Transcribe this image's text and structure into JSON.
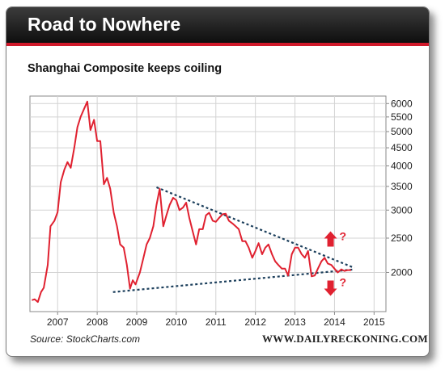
{
  "header": {
    "title": "Road to Nowhere"
  },
  "chart_data": {
    "type": "line",
    "title": "Shanghai Composite keeps coiling",
    "xlabel": "",
    "ylabel": "",
    "y_scale": "log",
    "ylim": [
      1550,
      6300
    ],
    "xlim": [
      2006.3,
      2015.3
    ],
    "y_axis_position": "right",
    "x_tick_labels": [
      "2007",
      "2008",
      "2009",
      "2010",
      "2011",
      "2012",
      "2013",
      "2014",
      "2015"
    ],
    "x_ticks": [
      2007,
      2008,
      2009,
      2010,
      2011,
      2012,
      2013,
      2014,
      2015
    ],
    "y_tick_labels": [
      "6000",
      "5500",
      "5000",
      "4500",
      "4000",
      "3500",
      "3000",
      "2500",
      "2000"
    ],
    "y_ticks": [
      6000,
      5500,
      5000,
      4500,
      4000,
      3500,
      3000,
      2500,
      2000
    ],
    "grid": true,
    "series": [
      {
        "color": "#e02130",
        "points": [
          [
            2006.35,
            1670
          ],
          [
            2006.42,
            1680
          ],
          [
            2006.5,
            1650
          ],
          [
            2006.58,
            1760
          ],
          [
            2006.65,
            1810
          ],
          [
            2006.75,
            2100
          ],
          [
            2006.82,
            2700
          ],
          [
            2006.92,
            2800
          ],
          [
            2007.0,
            2960
          ],
          [
            2007.08,
            3600
          ],
          [
            2007.17,
            3900
          ],
          [
            2007.25,
            4100
          ],
          [
            2007.33,
            3950
          ],
          [
            2007.42,
            4500
          ],
          [
            2007.5,
            5150
          ],
          [
            2007.58,
            5500
          ],
          [
            2007.67,
            5800
          ],
          [
            2007.75,
            6080
          ],
          [
            2007.83,
            5050
          ],
          [
            2007.92,
            5400
          ],
          [
            2008.0,
            4700
          ],
          [
            2008.08,
            4700
          ],
          [
            2008.17,
            3550
          ],
          [
            2008.25,
            3700
          ],
          [
            2008.33,
            3450
          ],
          [
            2008.42,
            2950
          ],
          [
            2008.5,
            2700
          ],
          [
            2008.58,
            2400
          ],
          [
            2008.67,
            2350
          ],
          [
            2008.75,
            2100
          ],
          [
            2008.83,
            1800
          ],
          [
            2008.9,
            1900
          ],
          [
            2008.97,
            1850
          ],
          [
            2009.08,
            2000
          ],
          [
            2009.17,
            2200
          ],
          [
            2009.25,
            2400
          ],
          [
            2009.33,
            2500
          ],
          [
            2009.42,
            2700
          ],
          [
            2009.5,
            3100
          ],
          [
            2009.58,
            3450
          ],
          [
            2009.67,
            2700
          ],
          [
            2009.75,
            2900
          ],
          [
            2009.83,
            3100
          ],
          [
            2009.92,
            3250
          ],
          [
            2010.0,
            3200
          ],
          [
            2010.08,
            3000
          ],
          [
            2010.17,
            3050
          ],
          [
            2010.25,
            3150
          ],
          [
            2010.33,
            2850
          ],
          [
            2010.42,
            2600
          ],
          [
            2010.5,
            2400
          ],
          [
            2010.58,
            2650
          ],
          [
            2010.67,
            2650
          ],
          [
            2010.75,
            2900
          ],
          [
            2010.83,
            2950
          ],
          [
            2010.92,
            2800
          ],
          [
            2011.0,
            2780
          ],
          [
            2011.08,
            2850
          ],
          [
            2011.17,
            2920
          ],
          [
            2011.25,
            2930
          ],
          [
            2011.33,
            2800
          ],
          [
            2011.42,
            2750
          ],
          [
            2011.5,
            2700
          ],
          [
            2011.58,
            2650
          ],
          [
            2011.67,
            2450
          ],
          [
            2011.75,
            2450
          ],
          [
            2011.83,
            2350
          ],
          [
            2011.92,
            2200
          ],
          [
            2012.0,
            2300
          ],
          [
            2012.08,
            2420
          ],
          [
            2012.17,
            2250
          ],
          [
            2012.25,
            2350
          ],
          [
            2012.33,
            2400
          ],
          [
            2012.42,
            2250
          ],
          [
            2012.5,
            2150
          ],
          [
            2012.58,
            2100
          ],
          [
            2012.67,
            2050
          ],
          [
            2012.75,
            2050
          ],
          [
            2012.83,
            1960
          ],
          [
            2012.92,
            2250
          ],
          [
            2013.0,
            2350
          ],
          [
            2013.08,
            2350
          ],
          [
            2013.17,
            2250
          ],
          [
            2013.25,
            2200
          ],
          [
            2013.33,
            2300
          ],
          [
            2013.42,
            1950
          ],
          [
            2013.5,
            1960
          ],
          [
            2013.58,
            2050
          ],
          [
            2013.67,
            2150
          ],
          [
            2013.75,
            2200
          ],
          [
            2013.83,
            2120
          ],
          [
            2013.92,
            2100
          ],
          [
            2014.0,
            2050
          ],
          [
            2014.08,
            2000
          ],
          [
            2014.17,
            2040
          ],
          [
            2014.25,
            2020
          ],
          [
            2014.33,
            2030
          ],
          [
            2014.42,
            2030
          ]
        ]
      }
    ],
    "trendlines": [
      {
        "style": "dotted",
        "color": "#1c3f5c",
        "points": [
          [
            2009.5,
            3480
          ],
          [
            2014.5,
            2060
          ]
        ]
      },
      {
        "style": "dotted",
        "color": "#1c3f5c",
        "points": [
          [
            2008.4,
            1760
          ],
          [
            2014.5,
            2040
          ]
        ]
      }
    ],
    "annotations": [
      {
        "type": "arrow-up",
        "color": "#e02130",
        "x": 2013.9,
        "y": 2480,
        "text": "?"
      },
      {
        "type": "arrow-down",
        "color": "#e02130",
        "x": 2013.9,
        "y": 1810,
        "text": "?"
      }
    ]
  },
  "footer": {
    "source": "Source: StockCharts.com",
    "brand": "WWW.DAILYRECKONING.COM"
  }
}
